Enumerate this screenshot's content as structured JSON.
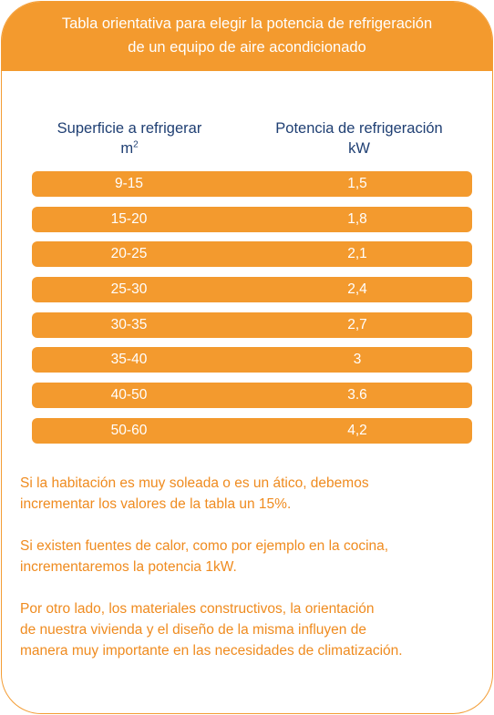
{
  "header": {
    "title_line1": "Tabla orientativa para elegir la potencia de refrigeración",
    "title_line2": "de un equipo de aire acondicionado"
  },
  "table": {
    "col1_label": "Superficie a refrigerar",
    "col1_unit": "m",
    "col1_unit_sup": "2",
    "col2_label": "Potencia de refrigeración",
    "col2_unit": "kW",
    "rows": [
      {
        "area": "9-15",
        "power": "1,5"
      },
      {
        "area": "15-20",
        "power": "1,8"
      },
      {
        "area": "20-25",
        "power": "2,1"
      },
      {
        "area": "25-30",
        "power": "2,4"
      },
      {
        "area": "30-35",
        "power": "2,7"
      },
      {
        "area": "35-40",
        "power": "3"
      },
      {
        "area": "40-50",
        "power": "3.6"
      },
      {
        "area": "50-60",
        "power": "4,2"
      }
    ]
  },
  "notes": {
    "p1_l1": "Si la habitación es muy soleada o es un ático, debemos",
    "p1_l2": "incrementar los valores de la tabla un 15%.",
    "p2_l1": "Si existen fuentes de calor, como por ejemplo en la cocina,",
    "p2_l2": "incrementaremos la potencia 1kW.",
    "p3_l1": "Por otro lado, los materiales  constructivos, la orientación",
    "p3_l2": "de nuestra vivienda y el diseño de la misma influyen de",
    "p3_l3": "manera muy importante en las necesidades de climatización."
  },
  "colors": {
    "accent": "#f39a2e",
    "heading_text": "#1f3f73",
    "note_text": "#ef8b1f"
  }
}
